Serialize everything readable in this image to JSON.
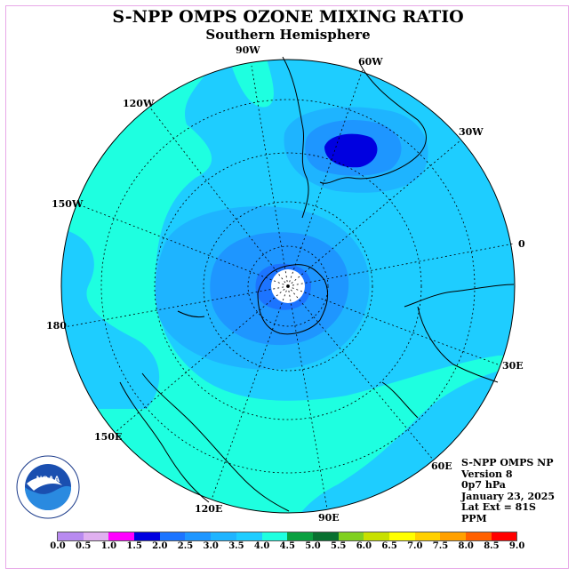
{
  "title": "S-NPP OMPS OZONE MIXING RATIO",
  "subtitle": "Southern Hemisphere",
  "longitude_labels": [
    "90W",
    "60W",
    "30W",
    "0",
    "30E",
    "60E",
    "90E",
    "120E",
    "150E",
    "180",
    "150W",
    "120W"
  ],
  "info": {
    "instrument": "S-NPP OMPS NP",
    "version": "Version 8",
    "level": "0p7 hPa",
    "date": "January 23, 2025",
    "lat_ext": "Lat Ext = 81S",
    "units": "PPM"
  },
  "logo_text": "NOAA",
  "colorbar": {
    "ticks": [
      "0.0",
      "0.5",
      "1.0",
      "1.5",
      "2.0",
      "2.5",
      "3.0",
      "3.5",
      "4.0",
      "4.5",
      "5.0",
      "5.5",
      "6.0",
      "6.5",
      "7.0",
      "7.5",
      "8.0",
      "8.5",
      "9.0"
    ],
    "colors": [
      "#b88af0",
      "#e0b0f0",
      "#ff00ff",
      "#0000e0",
      "#1c74ff",
      "#1e96ff",
      "#1eb4ff",
      "#1ecdff",
      "#1effe0",
      "#0aa040",
      "#087030",
      "#80d020",
      "#c8e000",
      "#ffff00",
      "#ffd000",
      "#ffa000",
      "#ff6000",
      "#ff0000",
      "#805030"
    ]
  }
}
